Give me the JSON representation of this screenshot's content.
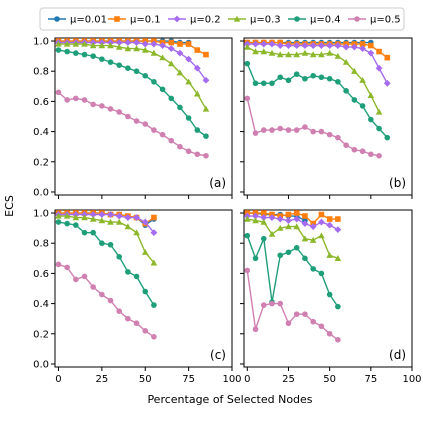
{
  "chart_data": {
    "type": "line",
    "xlabel": "Percentage of Selected Nodes",
    "ylabel": "ECS",
    "xlim": [
      -2,
      100
    ],
    "ylim": [
      -0.02,
      1.02
    ],
    "xticks": [
      0,
      25,
      50,
      75,
      100
    ],
    "yticks": [
      0.0,
      0.2,
      0.4,
      0.6,
      0.8,
      1.0
    ],
    "legend_position": "top",
    "series_styles": [
      {
        "name": "μ=0.01",
        "color": "#1f77b4",
        "marker": "circle"
      },
      {
        "name": "μ=0.1",
        "color": "#ff7f0e",
        "marker": "square"
      },
      {
        "name": "μ=0.2",
        "color": "#a56bf0",
        "marker": "diamond"
      },
      {
        "name": "μ=0.3",
        "color": "#8cb82b",
        "marker": "triangle"
      },
      {
        "name": "μ=0.4",
        "color": "#1f9e7a",
        "marker": "circle"
      },
      {
        "name": "μ=0.5",
        "color": "#d07fb1",
        "marker": "circle"
      }
    ],
    "panels": [
      {
        "label": "(a)",
        "x": [
          0,
          5,
          10,
          15,
          20,
          25,
          30,
          35,
          40,
          45,
          50,
          55,
          60,
          65,
          70,
          75,
          80,
          85
        ],
        "series": [
          {
            "name": "μ=0.01",
            "values": [
              1.0,
              1.0,
              1.0,
              1.0,
              1.0,
              1.0,
              1.0,
              1.0,
              1.0,
              1.0,
              1.0,
              1.0,
              1.0,
              1.0,
              0.99,
              0.99,
              null,
              null
            ]
          },
          {
            "name": "μ=0.1",
            "values": [
              1.0,
              1.0,
              1.0,
              1.0,
              1.0,
              1.0,
              1.0,
              1.0,
              1.0,
              1.0,
              1.0,
              1.0,
              0.99,
              0.99,
              0.98,
              0.98,
              0.94,
              0.91
            ]
          },
          {
            "name": "μ=0.2",
            "values": [
              0.99,
              0.99,
              0.99,
              0.99,
              0.99,
              0.99,
              0.99,
              0.99,
              0.99,
              0.99,
              0.98,
              0.98,
              0.97,
              0.95,
              0.92,
              0.88,
              0.82,
              0.74
            ]
          },
          {
            "name": "μ=0.3",
            "values": [
              0.98,
              0.98,
              0.98,
              0.98,
              0.97,
              0.97,
              0.97,
              0.96,
              0.95,
              0.95,
              0.94,
              0.92,
              0.89,
              0.85,
              0.79,
              0.73,
              0.65,
              0.55
            ]
          },
          {
            "name": "μ=0.4",
            "values": [
              0.94,
              0.93,
              0.92,
              0.91,
              0.9,
              0.88,
              0.86,
              0.84,
              0.82,
              0.8,
              0.77,
              0.73,
              0.68,
              0.62,
              0.56,
              0.49,
              0.41,
              0.37
            ]
          },
          {
            "name": "μ=0.5",
            "values": [
              0.66,
              0.61,
              0.62,
              0.61,
              0.58,
              0.57,
              0.55,
              0.53,
              0.5,
              0.47,
              0.45,
              0.41,
              0.38,
              0.34,
              0.3,
              0.27,
              0.25,
              0.24
            ]
          }
        ]
      },
      {
        "label": "(b)",
        "x": [
          0,
          5,
          10,
          15,
          20,
          25,
          30,
          35,
          40,
          45,
          50,
          55,
          60,
          65,
          70,
          75,
          80,
          85
        ],
        "series": [
          {
            "name": "μ=0.01",
            "values": [
              0.99,
              0.99,
              0.99,
              0.99,
              0.99,
              0.99,
              0.99,
              0.99,
              0.99,
              0.99,
              0.99,
              0.99,
              0.99,
              0.99,
              0.99,
              0.99,
              null,
              null
            ]
          },
          {
            "name": "μ=0.1",
            "values": [
              0.99,
              0.99,
              0.99,
              0.99,
              0.99,
              0.98,
              0.98,
              0.98,
              0.98,
              0.98,
              0.98,
              0.98,
              0.98,
              0.98,
              0.98,
              0.97,
              0.93,
              0.89
            ]
          },
          {
            "name": "μ=0.2",
            "values": [
              0.98,
              0.98,
              0.98,
              0.98,
              0.97,
              0.97,
              0.97,
              0.97,
              0.97,
              0.97,
              0.97,
              0.97,
              0.96,
              0.96,
              0.95,
              0.92,
              0.82,
              0.72
            ]
          },
          {
            "name": "μ=0.3",
            "values": [
              0.96,
              0.93,
              0.93,
              0.92,
              0.91,
              0.91,
              0.91,
              0.92,
              0.91,
              0.91,
              0.92,
              0.9,
              0.86,
              0.8,
              0.74,
              0.64,
              0.53,
              null
            ]
          },
          {
            "name": "μ=0.4",
            "values": [
              0.85,
              0.72,
              0.72,
              0.72,
              0.76,
              0.74,
              0.78,
              0.75,
              0.77,
              0.76,
              0.75,
              0.73,
              0.67,
              0.61,
              0.57,
              0.48,
              0.42,
              0.36
            ]
          },
          {
            "name": "μ=0.5",
            "values": [
              0.62,
              0.39,
              0.41,
              0.41,
              0.42,
              0.41,
              0.41,
              0.43,
              0.4,
              0.4,
              0.38,
              0.36,
              0.31,
              0.28,
              0.27,
              0.25,
              0.24,
              null
            ]
          }
        ]
      },
      {
        "label": "(c)",
        "x": [
          0,
          5,
          10,
          15,
          20,
          25,
          30,
          35,
          40,
          45,
          50,
          55
        ],
        "series": [
          {
            "name": "μ=0.01",
            "values": [
              1.0,
              1.0,
              1.0,
              1.0,
              1.0,
              1.0,
              0.99,
              0.99,
              0.98,
              0.97,
              0.92,
              0.96
            ]
          },
          {
            "name": "μ=0.1",
            "values": [
              1.0,
              1.0,
              1.0,
              1.0,
              1.0,
              1.0,
              0.99,
              0.99,
              0.98,
              0.97,
              0.93,
              0.97
            ]
          },
          {
            "name": "μ=0.2",
            "values": [
              0.99,
              0.99,
              0.99,
              0.99,
              0.99,
              0.99,
              0.99,
              0.98,
              0.97,
              0.97,
              0.94,
              0.87
            ]
          },
          {
            "name": "μ=0.3",
            "values": [
              0.98,
              0.98,
              0.97,
              0.97,
              0.96,
              0.95,
              0.94,
              0.94,
              0.91,
              0.87,
              0.74,
              0.67
            ]
          },
          {
            "name": "μ=0.4",
            "values": [
              0.94,
              0.93,
              0.92,
              0.87,
              0.87,
              0.8,
              0.79,
              0.71,
              0.61,
              0.58,
              0.48,
              0.39
            ]
          },
          {
            "name": "μ=0.5",
            "values": [
              0.66,
              0.64,
              0.56,
              0.58,
              0.51,
              0.46,
              0.42,
              0.35,
              0.3,
              0.27,
              0.22,
              0.18
            ]
          }
        ]
      },
      {
        "label": "(d)",
        "x": [
          0,
          5,
          10,
          15,
          20,
          25,
          30,
          35,
          40,
          45,
          50,
          55
        ],
        "series": [
          {
            "name": "μ=0.01",
            "values": [
              1.0,
              1.0,
              0.99,
              0.99,
              0.99,
              0.98,
              0.98,
              0.95,
              null,
              null,
              null,
              null
            ]
          },
          {
            "name": "μ=0.1",
            "values": [
              1.0,
              1.0,
              1.0,
              0.99,
              0.98,
              0.99,
              1.0,
              0.98,
              0.93,
              0.99,
              0.96,
              0.96
            ]
          },
          {
            "name": "μ=0.2",
            "values": [
              0.98,
              0.98,
              0.97,
              0.97,
              0.96,
              0.95,
              0.96,
              0.93,
              0.91,
              0.94,
              0.92,
              0.89
            ]
          },
          {
            "name": "μ=0.3",
            "values": [
              0.96,
              0.95,
              0.94,
              0.86,
              0.9,
              0.91,
              0.91,
              0.83,
              0.82,
              0.85,
              0.72,
              0.7
            ]
          },
          {
            "name": "μ=0.4",
            "values": [
              0.85,
              0.7,
              0.83,
              0.41,
              0.72,
              0.74,
              0.77,
              0.7,
              0.63,
              0.6,
              0.46,
              0.38
            ]
          },
          {
            "name": "μ=0.5",
            "values": [
              0.62,
              0.23,
              0.39,
              0.4,
              0.4,
              0.27,
              0.33,
              0.33,
              0.28,
              0.25,
              0.2,
              0.16
            ]
          }
        ]
      }
    ]
  }
}
